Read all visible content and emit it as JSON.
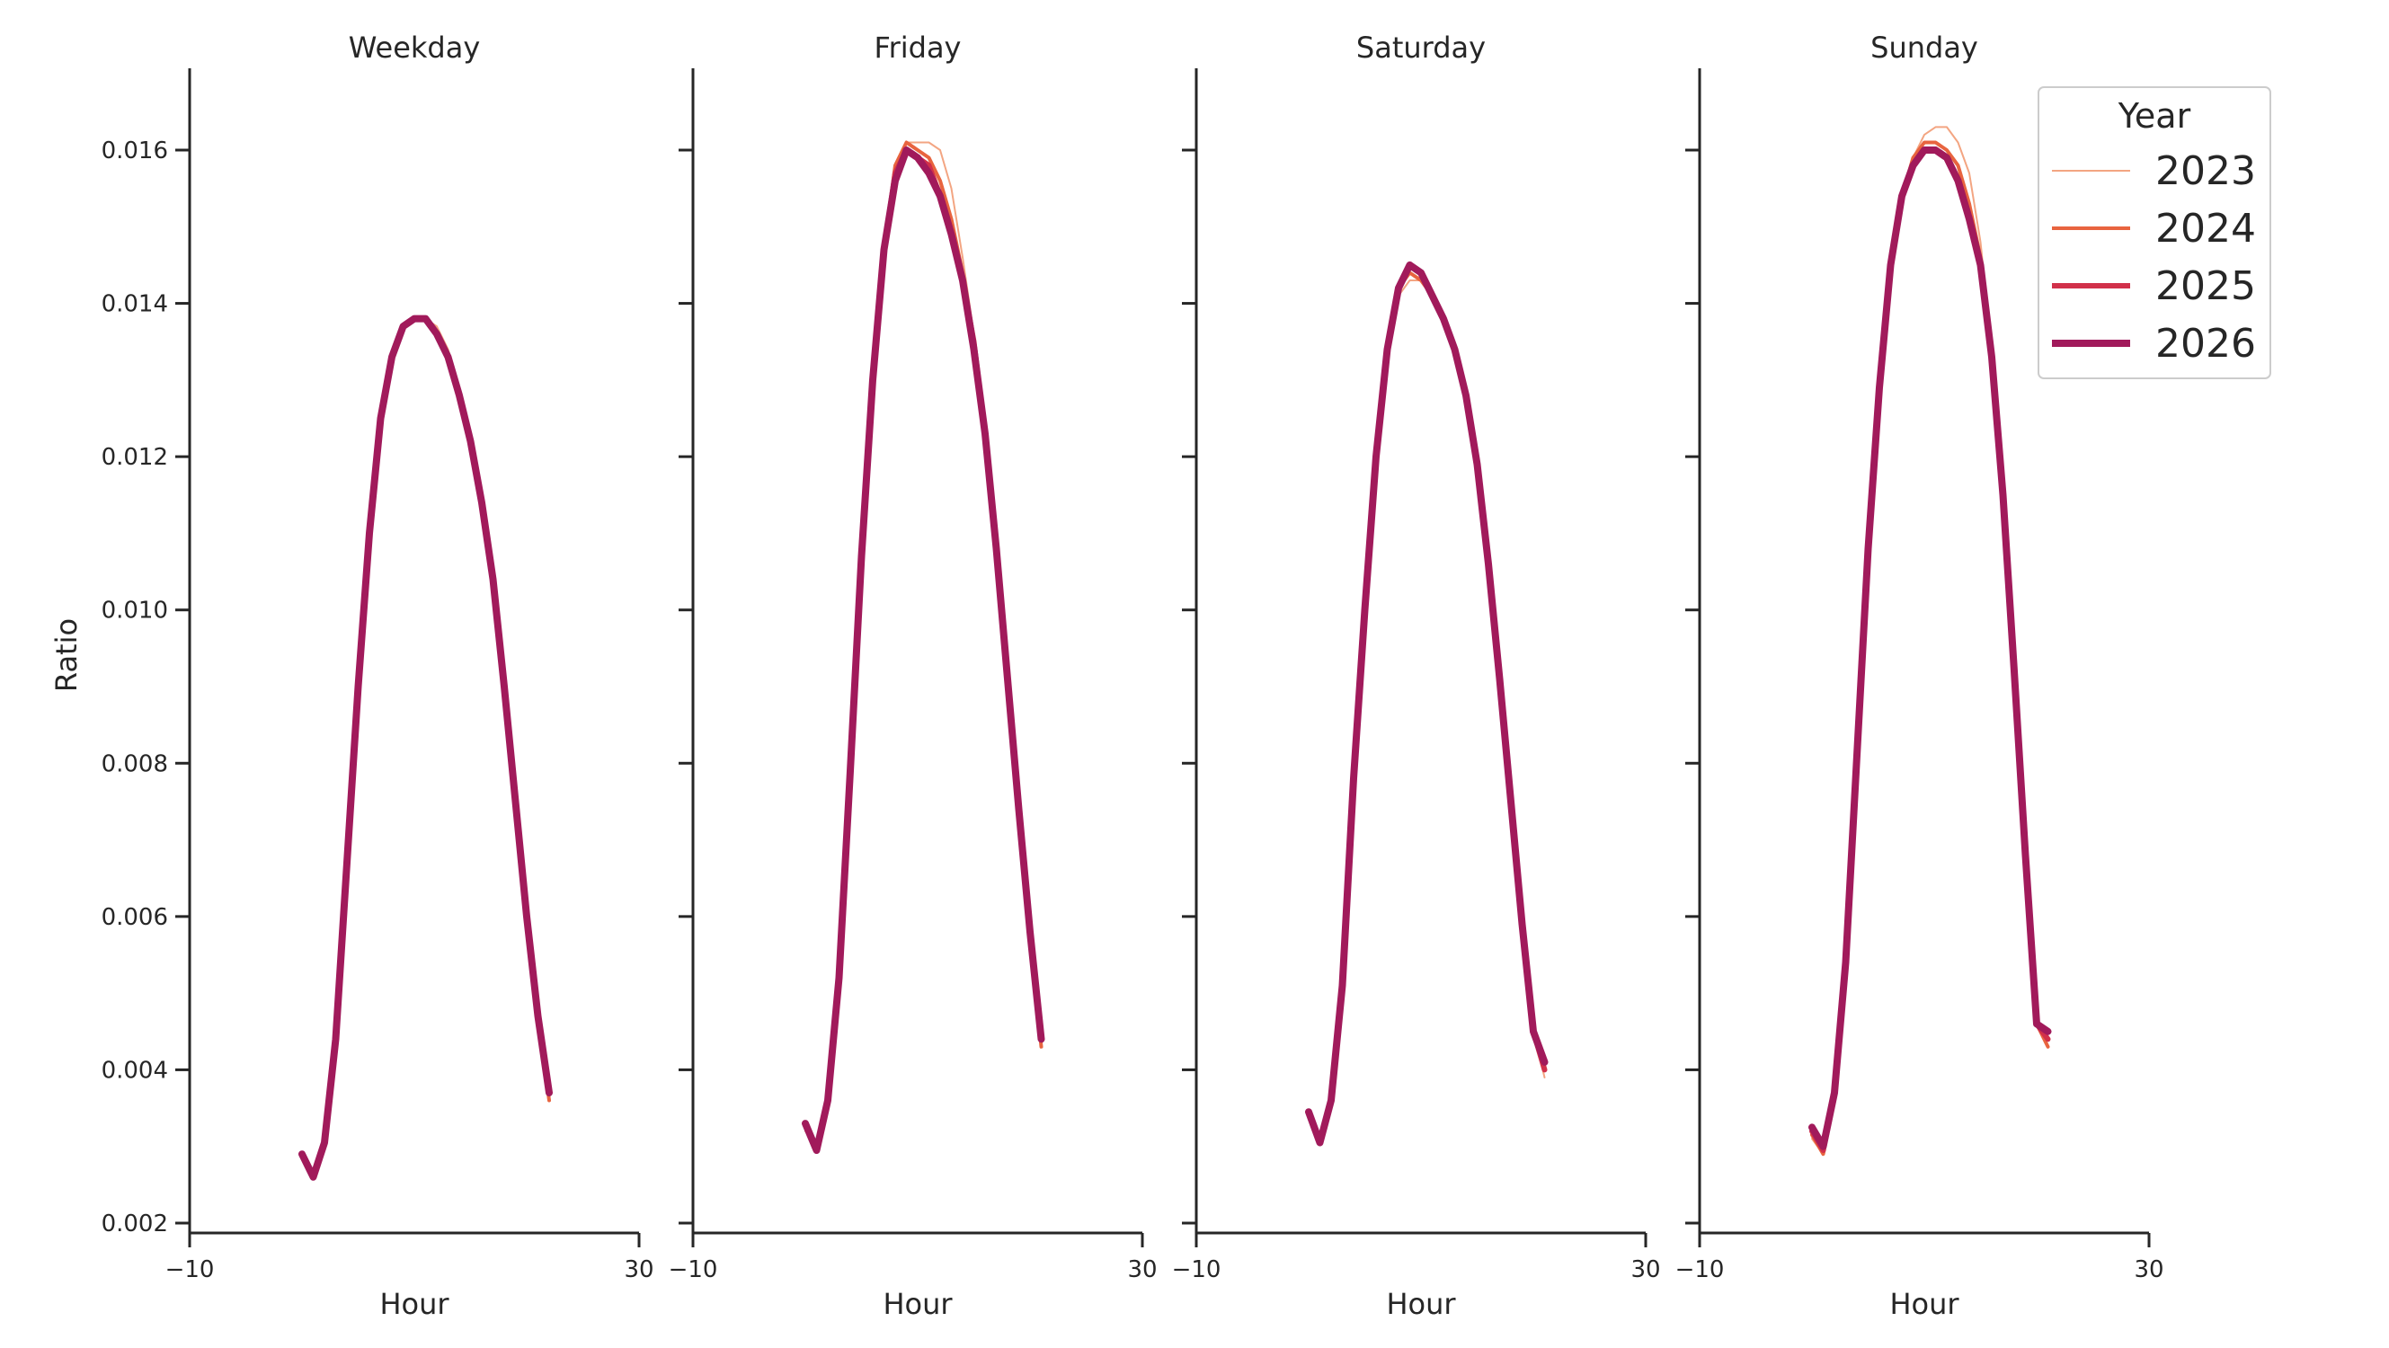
{
  "chart_data": {
    "type": "line",
    "ylabel": "Ratio",
    "xlabel": "Hour",
    "xlim": [
      -10,
      30
    ],
    "ylim": [
      0.00185,
      0.0171
    ],
    "x_ticks": [
      -10,
      30
    ],
    "x_tick_labels": [
      "−10",
      "30"
    ],
    "y_ticks": [
      0.002,
      0.004,
      0.006,
      0.008,
      0.01,
      0.012,
      0.014,
      0.016
    ],
    "y_tick_labels": [
      "0.002",
      "0.004",
      "0.006",
      "0.008",
      "0.010",
      "0.012",
      "0.014",
      "0.016"
    ],
    "grid": false,
    "sharey": true,
    "legend": {
      "title": "Year",
      "placement": "top-right",
      "entries": [
        "2023",
        "2024",
        "2025",
        "2026"
      ]
    },
    "series_style": {
      "2023": {
        "color": "#f3a582",
        "width": 2
      },
      "2024": {
        "color": "#e8643f",
        "width": 4
      },
      "2025": {
        "color": "#d1304a",
        "width": 6
      },
      "2026": {
        "color": "#a11a5b",
        "width": 8
      }
    },
    "x": [
      0,
      1,
      2,
      3,
      4,
      5,
      6,
      7,
      8,
      9,
      10,
      11,
      12,
      13,
      14,
      15,
      16,
      17,
      18,
      19,
      20,
      21,
      22,
      23
    ],
    "panels": [
      {
        "title": "Weekday",
        "series": [
          {
            "name": "2023",
            "values": [
              0.00285,
              0.0026,
              0.003,
              0.0044,
              0.0067,
              0.009,
              0.011,
              0.0125,
              0.0133,
              0.0137,
              0.0138,
              0.0138,
              0.0137,
              0.0134,
              0.0129,
              0.0123,
              0.0115,
              0.0104,
              0.009,
              0.0075,
              0.006,
              0.0047,
              0.0036,
              null
            ]
          },
          {
            "name": "2024",
            "values": [
              0.00288,
              0.0026,
              0.003,
              0.0044,
              0.0067,
              0.009,
              0.011,
              0.0125,
              0.0133,
              0.0137,
              0.0138,
              0.0138,
              0.0136,
              0.0133,
              0.0128,
              0.0122,
              0.0114,
              0.0104,
              0.009,
              0.0075,
              0.006,
              0.0047,
              0.0036,
              null
            ]
          },
          {
            "name": "2025",
            "values": [
              0.0029,
              0.0026,
              0.00305,
              0.0044,
              0.0067,
              0.009,
              0.011,
              0.0125,
              0.0133,
              0.0137,
              0.0138,
              0.0138,
              0.0136,
              0.0133,
              0.0128,
              0.0122,
              0.0114,
              0.0104,
              0.009,
              0.0075,
              0.006,
              0.0047,
              0.0037,
              null
            ]
          },
          {
            "name": "2026",
            "values": [
              0.0029,
              0.0026,
              0.00305,
              0.0044,
              0.0067,
              0.009,
              0.011,
              0.0125,
              0.0133,
              0.0137,
              0.0138,
              0.0138,
              0.0136,
              0.0133,
              0.0128,
              0.0122,
              0.0114,
              0.0104,
              0.009,
              0.0075,
              0.006,
              0.0047,
              0.0037,
              null
            ]
          }
        ]
      },
      {
        "title": "Friday",
        "series": [
          {
            "name": "2023",
            "values": [
              0.0032,
              0.003,
              0.0036,
              0.0052,
              0.0079,
              0.0107,
              0.013,
              0.0147,
              0.0157,
              0.0161,
              0.0161,
              0.0161,
              0.016,
              0.0155,
              0.0146,
              0.0136,
              0.0123,
              0.0108,
              0.0091,
              0.0074,
              0.0057,
              0.0043,
              null,
              null
            ]
          },
          {
            "name": "2024",
            "values": [
              0.0033,
              0.003,
              0.0036,
              0.0052,
              0.0079,
              0.0107,
              0.013,
              0.0147,
              0.0158,
              0.0161,
              0.016,
              0.0159,
              0.0156,
              0.0151,
              0.0144,
              0.0135,
              0.0123,
              0.0108,
              0.0091,
              0.0074,
              0.0058,
              0.0043,
              null,
              null
            ]
          },
          {
            "name": "2025",
            "values": [
              0.0033,
              0.00295,
              0.0036,
              0.0052,
              0.0079,
              0.0107,
              0.013,
              0.0147,
              0.0157,
              0.016,
              0.0159,
              0.0158,
              0.0154,
              0.0149,
              0.0143,
              0.0135,
              0.0123,
              0.0108,
              0.0091,
              0.0074,
              0.0058,
              0.0044,
              null,
              null
            ]
          },
          {
            "name": "2026",
            "values": [
              0.0033,
              0.00295,
              0.0036,
              0.0052,
              0.0079,
              0.0107,
              0.013,
              0.0147,
              0.0156,
              0.016,
              0.0159,
              0.0157,
              0.0154,
              0.0149,
              0.0143,
              0.0134,
              0.0123,
              0.0108,
              0.0091,
              0.0074,
              0.0058,
              0.0044,
              null,
              null
            ]
          }
        ]
      },
      {
        "title": "Saturday",
        "series": [
          {
            "name": "2023",
            "values": [
              0.0034,
              0.0031,
              0.0036,
              0.0051,
              0.0078,
              0.01,
              0.012,
              0.0134,
              0.0141,
              0.0143,
              0.0143,
              0.0141,
              0.0138,
              0.0134,
              0.0128,
              0.0119,
              0.0106,
              0.0091,
              0.0075,
              0.0059,
              0.0045,
              0.0039,
              null,
              null
            ]
          },
          {
            "name": "2024",
            "values": [
              0.0034,
              0.0031,
              0.0036,
              0.0051,
              0.0078,
              0.01,
              0.012,
              0.0134,
              0.0142,
              0.0144,
              0.0143,
              0.0141,
              0.0138,
              0.0134,
              0.0128,
              0.0119,
              0.0106,
              0.0091,
              0.0075,
              0.0059,
              0.0045,
              0.004,
              null,
              null
            ]
          },
          {
            "name": "2025",
            "values": [
              0.00345,
              0.00305,
              0.0036,
              0.0051,
              0.0078,
              0.01,
              0.012,
              0.0134,
              0.0142,
              0.0145,
              0.0144,
              0.0141,
              0.0138,
              0.0134,
              0.0128,
              0.0119,
              0.0106,
              0.0091,
              0.0075,
              0.0059,
              0.0045,
              0.004,
              null,
              null
            ]
          },
          {
            "name": "2026",
            "values": [
              0.00345,
              0.00305,
              0.0036,
              0.0051,
              0.0078,
              0.01,
              0.012,
              0.0134,
              0.0142,
              0.0145,
              0.0144,
              0.0141,
              0.0138,
              0.0134,
              0.0128,
              0.0119,
              0.0106,
              0.0091,
              0.0075,
              0.0059,
              0.0045,
              0.0041,
              null,
              null
            ]
          }
        ]
      },
      {
        "title": "Sunday",
        "series": [
          {
            "name": "2023",
            "values": [
              0.0031,
              0.0029,
              0.0036,
              0.0054,
              0.0081,
              0.0108,
              0.0129,
              0.0145,
              0.0154,
              0.0159,
              0.0162,
              0.0163,
              0.0163,
              0.0161,
              0.0157,
              0.0148,
              0.0134,
              0.0115,
              0.0092,
              0.0068,
              0.0046,
              0.0043,
              null,
              null
            ]
          },
          {
            "name": "2024",
            "values": [
              0.00315,
              0.0029,
              0.0036,
              0.0054,
              0.0081,
              0.0108,
              0.0129,
              0.0145,
              0.0154,
              0.0159,
              0.0161,
              0.0161,
              0.016,
              0.0158,
              0.0153,
              0.0146,
              0.0134,
              0.0115,
              0.0092,
              0.0068,
              0.0046,
              0.0043,
              null,
              null
            ]
          },
          {
            "name": "2025",
            "values": [
              0.0032,
              0.00295,
              0.0037,
              0.0054,
              0.0081,
              0.0108,
              0.0129,
              0.0145,
              0.0154,
              0.0158,
              0.016,
              0.016,
              0.0159,
              0.0156,
              0.0151,
              0.0145,
              0.0133,
              0.0115,
              0.0092,
              0.0068,
              0.0046,
              0.0044,
              null,
              null
            ]
          },
          {
            "name": "2026",
            "values": [
              0.00325,
              0.003,
              0.0037,
              0.0054,
              0.0081,
              0.0108,
              0.0129,
              0.0145,
              0.0154,
              0.0158,
              0.016,
              0.016,
              0.0159,
              0.0156,
              0.0151,
              0.0145,
              0.0133,
              0.0115,
              0.0092,
              0.0068,
              0.0046,
              0.0045,
              null,
              null
            ]
          }
        ]
      }
    ]
  }
}
